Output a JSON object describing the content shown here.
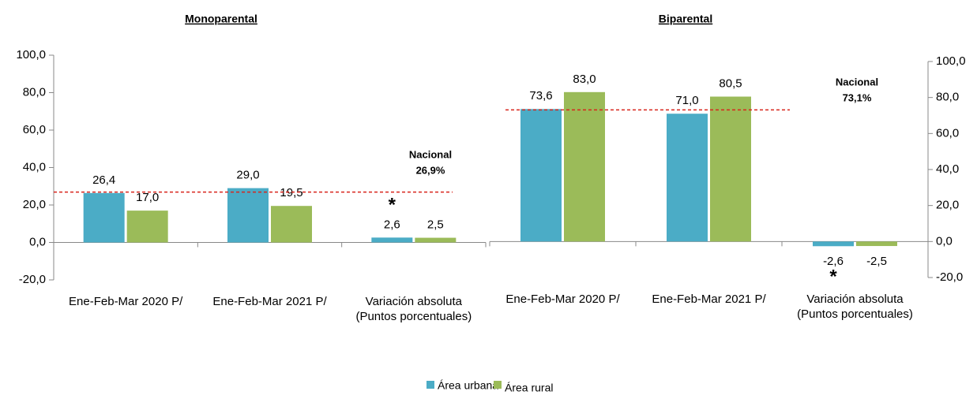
{
  "chart_data": [
    {
      "type": "bar",
      "title": "Monoparental",
      "categories": [
        "Ene-Feb-Mar 2020 P/",
        "Ene-Feb-Mar 2021 P/",
        "Variación absoluta\n(Puntos porcentuales)"
      ],
      "series": [
        {
          "name": "Área urbana",
          "color": "#4bacc6",
          "values": [
            26.4,
            29.0,
            2.6
          ],
          "value_labels": [
            "26,4",
            "29,0",
            "2,6"
          ]
        },
        {
          "name": "Área rural",
          "color": "#9bbb59",
          "values": [
            17.0,
            19.5,
            2.5
          ],
          "value_labels": [
            "17,0",
            "19,5",
            "2,5"
          ]
        }
      ],
      "ylim": [
        -20,
        100
      ],
      "yticks": [
        {
          "value": -20,
          "label": "-20,0"
        },
        {
          "value": 0,
          "label": "0,0"
        },
        {
          "value": 20,
          "label": "20,0"
        },
        {
          "value": 40,
          "label": "40,0"
        },
        {
          "value": 60,
          "label": "60,0"
        },
        {
          "value": 80,
          "label": "80,0"
        },
        {
          "value": 100,
          "label": "100,0"
        }
      ],
      "y_axis_side": "left",
      "reference_line": {
        "label": "Nacional",
        "value": 26.9,
        "value_label": "26,9%",
        "color": "#d9241b"
      },
      "annotations": [
        {
          "text": "*"
        }
      ]
    },
    {
      "type": "bar",
      "title": "Biparental",
      "categories": [
        "Ene-Feb-Mar 2020 P/",
        "Ene-Feb-Mar 2021 P/",
        "Variación absoluta\n(Puntos porcentuales)"
      ],
      "series": [
        {
          "name": "Área urbana",
          "color": "#4bacc6",
          "values": [
            73.6,
            71.0,
            -2.6
          ],
          "value_labels": [
            "73,6",
            "71,0",
            "-2,6"
          ]
        },
        {
          "name": "Área rural",
          "color": "#9bbb59",
          "values": [
            83.0,
            80.5,
            -2.5
          ],
          "value_labels": [
            "83,0",
            "80,5",
            "-2,5"
          ]
        }
      ],
      "ylim": [
        -20,
        100
      ],
      "yticks": [
        {
          "value": -20,
          "label": "-20,0"
        },
        {
          "value": 0,
          "label": "0,0"
        },
        {
          "value": 20,
          "label": "20,0"
        },
        {
          "value": 40,
          "label": "40,0"
        },
        {
          "value": 60,
          "label": "60,0"
        },
        {
          "value": 80,
          "label": "80,0"
        },
        {
          "value": 100,
          "label": "100,0"
        }
      ],
      "y_axis_side": "right",
      "reference_line": {
        "label": "Nacional",
        "value": 73.1,
        "value_label": "73,1%",
        "color": "#d9241b"
      },
      "annotations": [
        {
          "text": "*"
        }
      ]
    }
  ]
}
